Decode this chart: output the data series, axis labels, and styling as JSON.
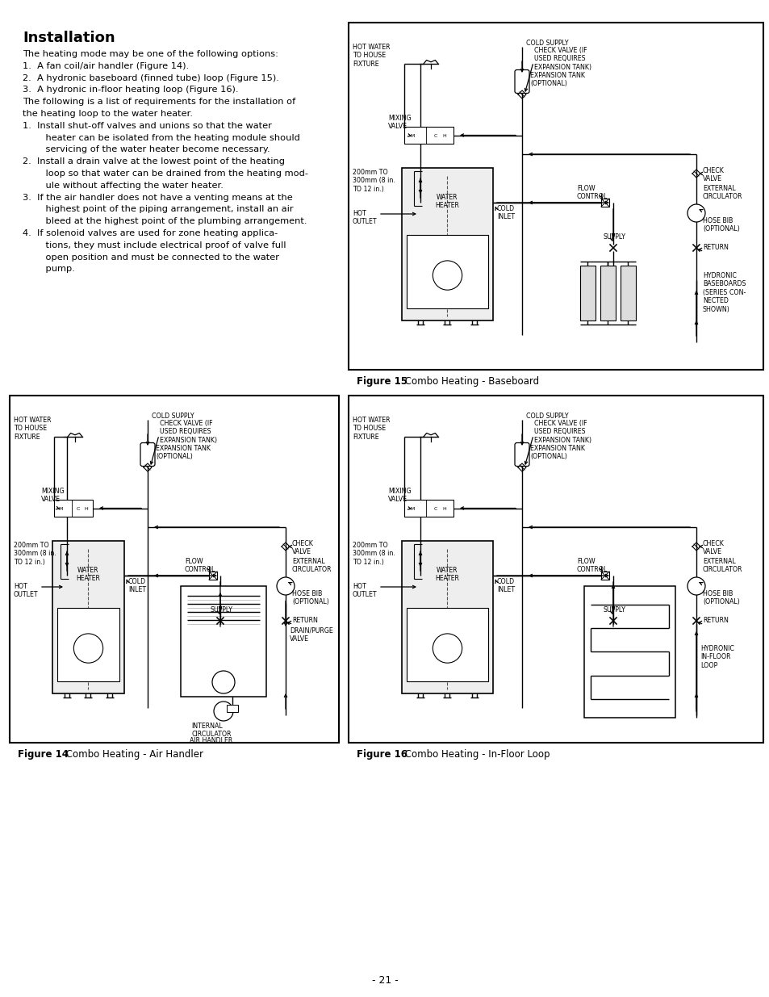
{
  "page_bg": "#ffffff",
  "title": "Installation",
  "page_number": "- 21 -",
  "body_text_lines": [
    {
      "text": "The heating mode may be one of the following options:",
      "indent": 0
    },
    {
      "text": "1.  A fan coil/air handler (Figure 14).",
      "indent": 1
    },
    {
      "text": "2.  A hydronic baseboard (finned tube) loop (Figure 15).",
      "indent": 1
    },
    {
      "text": "3.  A hydronic in-floor heating loop (Figure 16).",
      "indent": 1
    },
    {
      "text": "The following is a list of requirements for the installation of",
      "indent": 0
    },
    {
      "text": "the heating loop to the water heater.",
      "indent": 0
    },
    {
      "text": "1.  Install shut-off valves and unions so that the water",
      "indent": 1
    },
    {
      "text": "    heater can be isolated from the heating module should",
      "indent": 2
    },
    {
      "text": "    servicing of the water heater become necessary.",
      "indent": 2
    },
    {
      "text": "2.  Install a drain valve at the lowest point of the heating",
      "indent": 1
    },
    {
      "text": "    loop so that water can be drained from the heating mod-",
      "indent": 2
    },
    {
      "text": "    ule without affecting the water heater.",
      "indent": 2
    },
    {
      "text": "3.  If the air handler does not have a venting means at the",
      "indent": 1
    },
    {
      "text": "    highest point of the piping arrangement, install an air",
      "indent": 2
    },
    {
      "text": "    bleed at the highest point of the plumbing arrangement.",
      "indent": 2
    },
    {
      "text": "4.  If solenoid valves are used for zone heating applica-",
      "indent": 1
    },
    {
      "text": "    tions, they must include electrical proof of valve full",
      "indent": 2
    },
    {
      "text": "    open position and must be connected to the water",
      "indent": 2
    },
    {
      "text": "    pump.",
      "indent": 2
    }
  ],
  "fig14_caption": "Figure 14",
  "fig14_caption_rest": " Combo Heating - Air Handler",
  "fig15_caption": "Figure 15",
  "fig15_caption_rest": " Combo Heating - Baseboard",
  "fig16_caption": "Figure 16",
  "fig16_caption_rest": " Combo Heating - In-Floor Loop"
}
